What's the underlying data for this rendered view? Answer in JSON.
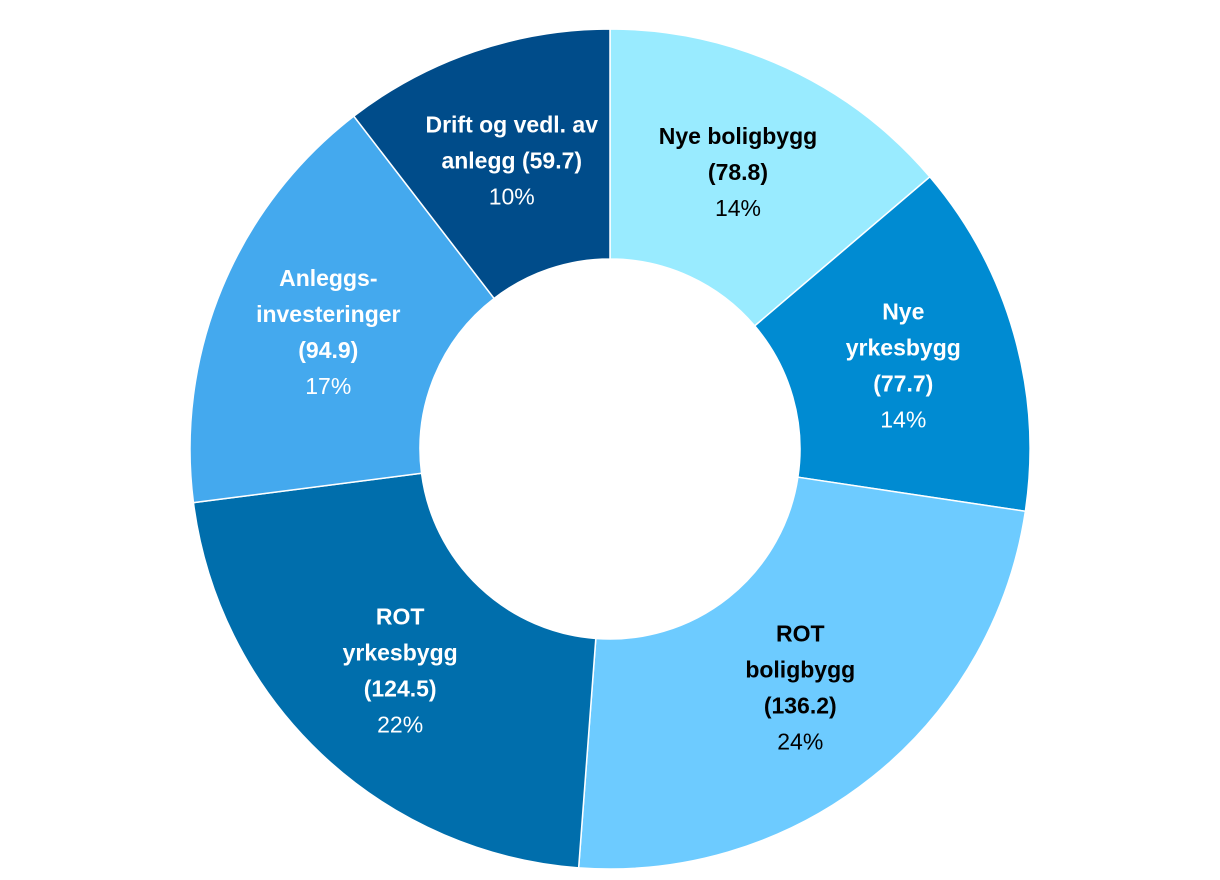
{
  "chart_data": {
    "type": "pie",
    "donut": true,
    "title": "",
    "slices": [
      {
        "lines": [
          "Nye boligbygg",
          "(78.8)"
        ],
        "value": 78.8,
        "pct": "14%",
        "color": "#99EBFF",
        "text_color": "#000000"
      },
      {
        "lines": [
          "Nye",
          "yrkesbygg",
          "(77.7)"
        ],
        "value": 77.7,
        "pct": "14%",
        "color": "#008BD2",
        "text_color": "#FFFFFF"
      },
      {
        "lines": [
          "ROT",
          "boligbygg",
          "(136.2)"
        ],
        "value": 136.2,
        "pct": "24%",
        "color": "#6DCBFF",
        "text_color": "#000000"
      },
      {
        "lines": [
          "ROT",
          "yrkesbygg",
          "(124.5)"
        ],
        "value": 124.5,
        "pct": "22%",
        "color": "#006EAC",
        "text_color": "#FFFFFF"
      },
      {
        "lines": [
          "Anleggs-",
          "investeringer",
          "(94.9)"
        ],
        "value": 94.9,
        "pct": "17%",
        "color": "#44A9EE",
        "text_color": "#FFFFFF"
      },
      {
        "lines": [
          "Drift og vedl. av",
          "anlegg (59.7)"
        ],
        "value": 59.7,
        "pct": "10%",
        "color": "#004C8A",
        "text_color": "#FFFFFF"
      }
    ]
  }
}
